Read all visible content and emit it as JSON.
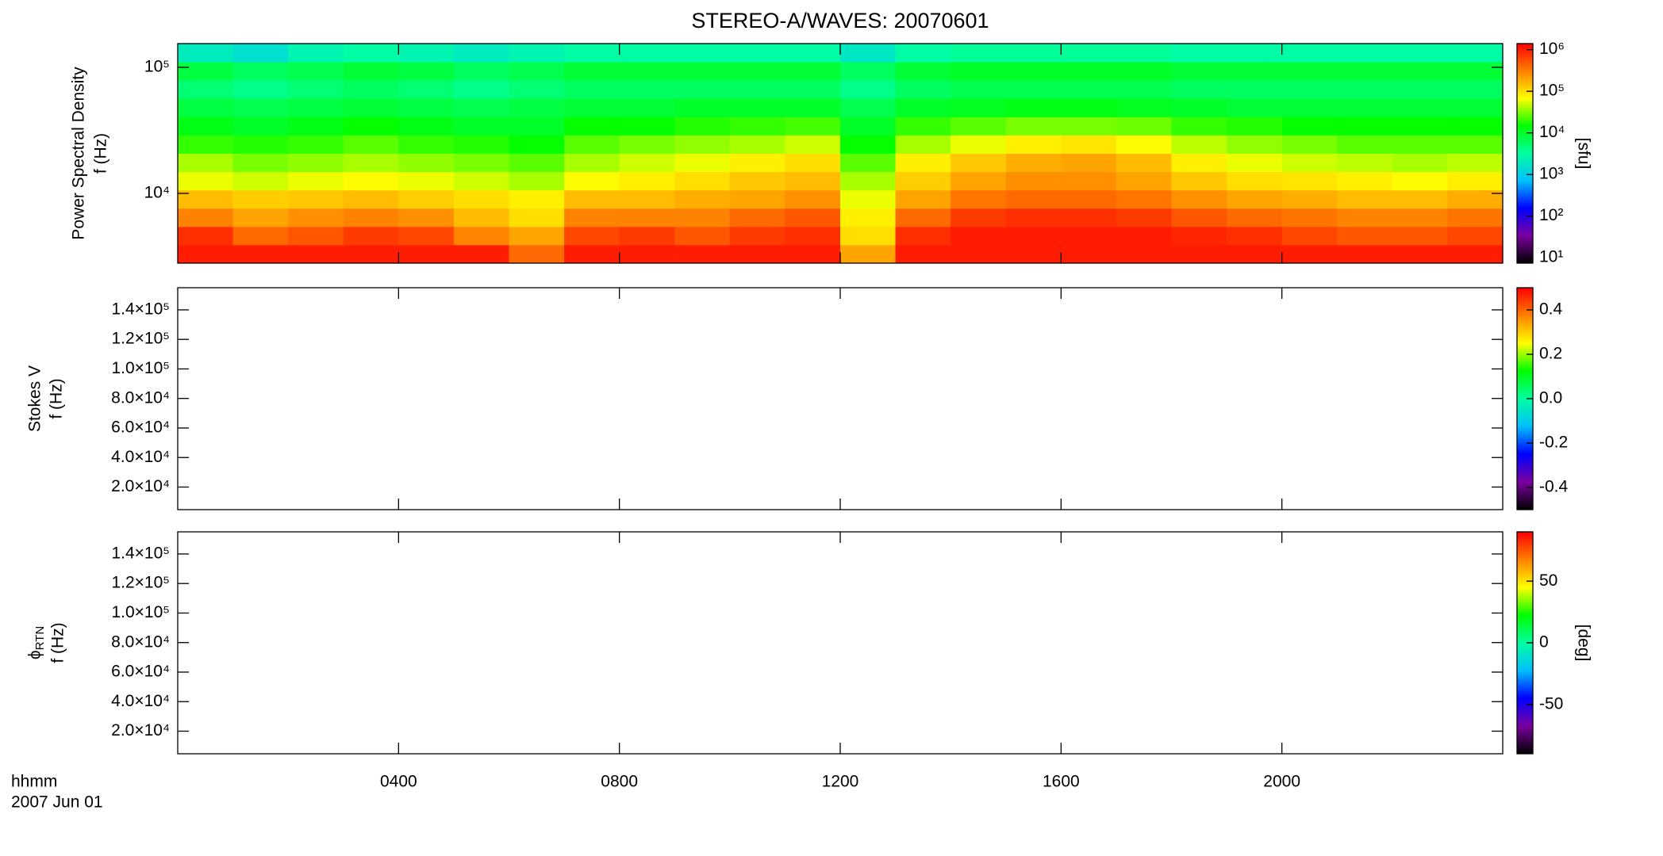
{
  "chart_data": {
    "type": "heatmap",
    "title": "STEREO-A/WAVES: 20070601",
    "xlim": [
      0,
      24
    ],
    "xticks": [
      {
        "value": 4,
        "label": "0400"
      },
      {
        "value": 8,
        "label": "0800"
      },
      {
        "value": 12,
        "label": "1200"
      },
      {
        "value": 16,
        "label": "1600"
      },
      {
        "value": 20,
        "label": "2000"
      }
    ],
    "xlabel": [
      "hhmm",
      "2007 Jun 01"
    ],
    "colormap": [
      "#000000",
      "#7a00a0",
      "#0000ff",
      "#00c0ff",
      "#00ffa0",
      "#00ff00",
      "#ffff00",
      "#ff8000",
      "#ff0000"
    ],
    "panels": [
      {
        "ylabel": [
          "Power Spectral Density",
          "f (Hz)"
        ],
        "ylog": true,
        "ylim": [
          2800,
          154000
        ],
        "yticks": [
          {
            "value": 10000,
            "label": "10⁴"
          },
          {
            "value": 100000,
            "label": "10⁵"
          }
        ],
        "clog": true,
        "clim": [
          7.4,
          1400000
        ],
        "cticks": [
          {
            "value": 10,
            "label": "10¹"
          },
          {
            "value": 100,
            "label": "10²"
          },
          {
            "value": 1000,
            "label": "10³"
          },
          {
            "value": 10000,
            "label": "10⁴"
          },
          {
            "value": 100000,
            "label": "10⁵"
          },
          {
            "value": 1000000,
            "label": "10⁶"
          }
        ],
        "clabel": "[sfu]",
        "x_bins": [
          0,
          1,
          2,
          3,
          4,
          5,
          6,
          7,
          8,
          9,
          10,
          11,
          12,
          13,
          14,
          15,
          16,
          17,
          18,
          19,
          20,
          21,
          22,
          23,
          24
        ],
        "y_bins": [
          2800,
          3910,
          5460,
          7630,
          10650,
          14870,
          20770,
          29000,
          40500,
          56600,
          79000,
          110300,
          154000
        ],
        "z": [
          [
            1000000,
            1000000,
            1000000,
            1000000,
            1000000,
            1000000,
            400000,
            1000000,
            1000000,
            1000000,
            1000000,
            1000000,
            200000,
            1000000,
            1000000,
            1000000,
            1000000,
            1000000,
            1000000,
            1000000,
            1000000,
            1000000,
            1000000,
            1000000
          ],
          [
            800000,
            400000,
            500000,
            700000,
            600000,
            300000,
            200000,
            600000,
            700000,
            500000,
            700000,
            800000,
            100000,
            800000,
            1000000,
            1000000,
            1000000,
            1000000,
            900000,
            800000,
            600000,
            500000,
            500000,
            600000
          ],
          [
            300000,
            200000,
            250000,
            300000,
            250000,
            150000,
            100000,
            300000,
            300000,
            300000,
            400000,
            500000,
            80000,
            400000,
            700000,
            800000,
            800000,
            700000,
            500000,
            400000,
            350000,
            300000,
            300000,
            350000
          ],
          [
            150000,
            120000,
            130000,
            150000,
            120000,
            100000,
            80000,
            150000,
            150000,
            180000,
            200000,
            250000,
            60000,
            200000,
            350000,
            400000,
            400000,
            350000,
            250000,
            200000,
            180000,
            150000,
            150000,
            180000
          ],
          [
            60000,
            50000,
            60000,
            70000,
            60000,
            50000,
            40000,
            70000,
            80000,
            100000,
            130000,
            150000,
            40000,
            120000,
            200000,
            250000,
            250000,
            200000,
            130000,
            100000,
            90000,
            80000,
            70000,
            80000
          ],
          [
            40000,
            30000,
            35000,
            40000,
            35000,
            30000,
            25000,
            40000,
            50000,
            60000,
            80000,
            100000,
            25000,
            80000,
            130000,
            180000,
            200000,
            150000,
            80000,
            60000,
            50000,
            45000,
            40000,
            45000
          ],
          [
            20000,
            18000,
            20000,
            25000,
            20000,
            18000,
            15000,
            25000,
            30000,
            35000,
            40000,
            50000,
            15000,
            40000,
            60000,
            80000,
            90000,
            70000,
            45000,
            35000,
            30000,
            25000,
            25000,
            25000
          ],
          [
            12000,
            10000,
            12000,
            15000,
            12000,
            10000,
            10000,
            15000,
            15000,
            18000,
            20000,
            22000,
            10000,
            20000,
            25000,
            30000,
            30000,
            28000,
            20000,
            18000,
            15000,
            15000,
            15000,
            15000
          ],
          [
            8000,
            7000,
            8000,
            9000,
            8000,
            7000,
            8000,
            9000,
            9000,
            10000,
            10000,
            10000,
            7000,
            10000,
            11000,
            12000,
            12000,
            11000,
            10000,
            9000,
            9000,
            9000,
            9000,
            9000
          ],
          [
            5000,
            4000,
            5000,
            6000,
            5000,
            4000,
            5000,
            6000,
            6000,
            6000,
            6000,
            6000,
            4000,
            6000,
            7000,
            7000,
            7000,
            7000,
            6000,
            6000,
            6000,
            6000,
            6000,
            6000
          ],
          [
            8000,
            6000,
            7000,
            9000,
            8000,
            6000,
            7000,
            9000,
            9000,
            9000,
            9000,
            9000,
            6000,
            9000,
            10000,
            10000,
            10000,
            10000,
            9000,
            9000,
            9000,
            9000,
            9000,
            9000
          ],
          [
            2000,
            1500,
            2500,
            3000,
            2500,
            2000,
            2500,
            3000,
            3000,
            3000,
            3000,
            3000,
            1800,
            3000,
            3500,
            3500,
            3500,
            3500,
            3000,
            3000,
            3000,
            3000,
            3000,
            3000
          ]
        ]
      },
      {
        "ylabel": [
          "Stokes V",
          "f (Hz)"
        ],
        "ylog": false,
        "ylim": [
          4700,
          155000
        ],
        "yticks": [
          {
            "value": 20000,
            "label": "2.0×10⁴"
          },
          {
            "value": 40000,
            "label": "4.0×10⁴"
          },
          {
            "value": 60000,
            "label": "6.0×10⁴"
          },
          {
            "value": 80000,
            "label": "8.0×10⁴"
          },
          {
            "value": 100000,
            "label": "1.0×10⁵"
          },
          {
            "value": 120000,
            "label": "1.2×10⁵"
          },
          {
            "value": 140000,
            "label": "1.4×10⁵"
          }
        ],
        "clog": false,
        "clim": [
          -0.5,
          0.5
        ],
        "cticks": [
          -0.4,
          -0.2,
          {
            "value": 0,
            "label": "0.0"
          },
          0.2,
          0.4
        ]
      },
      {
        "ylabel": [
          "ϕ",
          "f (Hz)"
        ],
        "ylabel_subscript": "RTN",
        "ylog": false,
        "ylim": [
          4700,
          155000
        ],
        "yticks": [
          {
            "value": 20000,
            "label": "2.0×10⁴"
          },
          {
            "value": 40000,
            "label": "4.0×10⁴"
          },
          {
            "value": 60000,
            "label": "6.0×10⁴"
          },
          {
            "value": 80000,
            "label": "8.0×10⁴"
          },
          {
            "value": 100000,
            "label": "1.0×10⁵"
          },
          {
            "value": 120000,
            "label": "1.2×10⁵"
          },
          {
            "value": 140000,
            "label": "1.4×10⁵"
          }
        ],
        "clog": false,
        "clim": [
          -90,
          90
        ],
        "cticks": [
          -50,
          0,
          50
        ],
        "clabel": "[deg]"
      }
    ]
  }
}
